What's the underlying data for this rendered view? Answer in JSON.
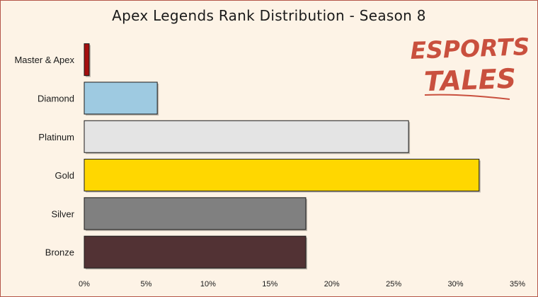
{
  "chart_data": {
    "type": "bar",
    "orientation": "horizontal",
    "title": "Apex Legends Rank Distribution - Season 8",
    "categories": [
      "Master & Apex",
      "Diamond",
      "Platinum",
      "Gold",
      "Silver",
      "Bronze"
    ],
    "values": [
      0.4,
      5.9,
      26.2,
      31.9,
      17.9,
      17.9
    ],
    "colors": [
      "#a50f0f",
      "#9ecae1",
      "#e4e4e4",
      "#ffd700",
      "#808080",
      "#523234"
    ],
    "xlim": [
      0,
      35
    ],
    "xticks": [
      "0%",
      "5%",
      "10%",
      "15%",
      "20%",
      "25%",
      "30%",
      "35%"
    ],
    "xlabel": "",
    "ylabel": "",
    "grid": false
  },
  "logo": {
    "line1": "ESPORTS",
    "line2": "TALES",
    "color": "#c9503e"
  },
  "background": "#fdf3e6"
}
